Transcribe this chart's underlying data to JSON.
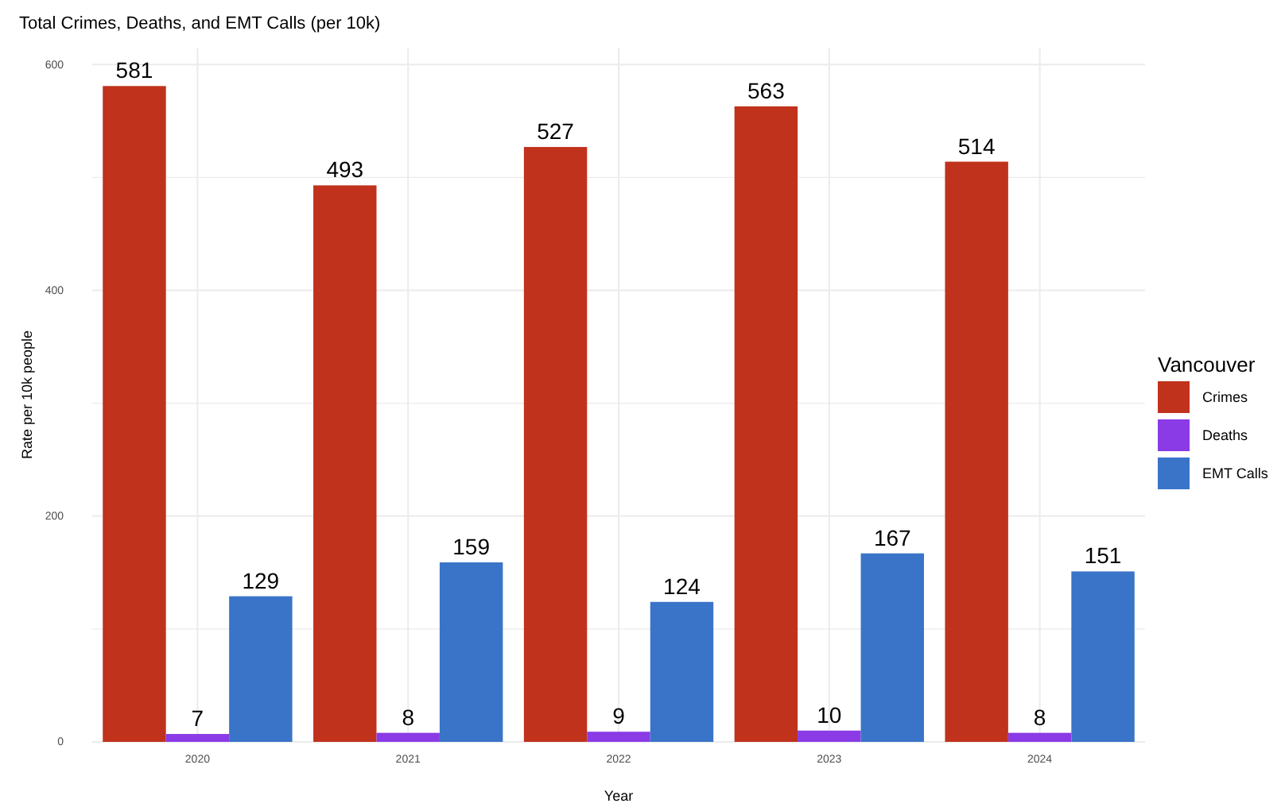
{
  "chart_data": {
    "type": "bar",
    "title": "Total Crimes, Deaths, and EMT Calls (per 10k)",
    "xlabel": "Year",
    "ylabel": "Rate per 10k people",
    "legend_title": "Vancouver",
    "categories": [
      "2020",
      "2021",
      "2022",
      "2023",
      "2024"
    ],
    "series": [
      {
        "name": "Crimes",
        "color": "#c0321c",
        "values": [
          581,
          493,
          527,
          563,
          514
        ]
      },
      {
        "name": "Deaths",
        "color": "#8a3be6",
        "values": [
          7,
          8,
          9,
          10,
          8
        ]
      },
      {
        "name": "EMT Calls",
        "color": "#3a74c8",
        "values": [
          129,
          159,
          124,
          167,
          151
        ]
      }
    ],
    "ylim": [
      0,
      615
    ],
    "yticks": [
      0,
      {
        "value": 100,
        "label": null
      },
      200,
      {
        "value": 300,
        "label": null
      },
      400,
      {
        "value": 500,
        "label": null
      },
      600
    ],
    "grid": true,
    "legend": "right",
    "data_labels": true
  }
}
